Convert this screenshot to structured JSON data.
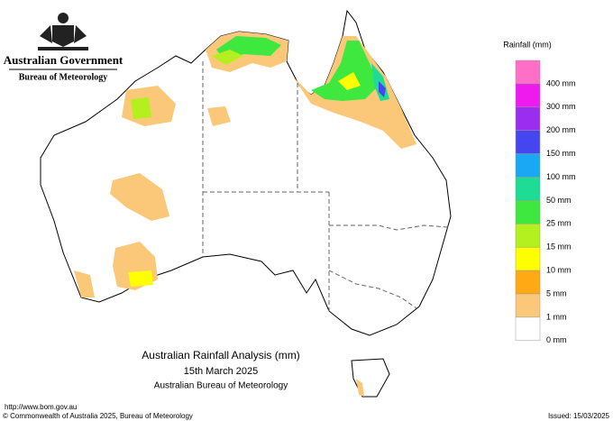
{
  "header": {
    "government": "Australian Government",
    "bureau": "Bureau of Meteorology"
  },
  "legend": {
    "title": "Rainfall (mm)",
    "items": [
      {
        "label": "400 mm",
        "color": "#ff6ec7"
      },
      {
        "label": "300 mm",
        "color": "#ee1aee"
      },
      {
        "label": "200 mm",
        "color": "#9a2ef0"
      },
      {
        "label": "150 mm",
        "color": "#4646f0"
      },
      {
        "label": "100 mm",
        "color": "#1aa8f5"
      },
      {
        "label": "50 mm",
        "color": "#1edc96"
      },
      {
        "label": "25 mm",
        "color": "#3ee83e"
      },
      {
        "label": "15 mm",
        "color": "#b4f01e"
      },
      {
        "label": "10 mm",
        "color": "#ffff00"
      },
      {
        "label": "5 mm",
        "color": "#ffaa14"
      },
      {
        "label": "1 mm",
        "color": "#fac878"
      },
      {
        "label": "0 mm",
        "color": "#ffffff"
      }
    ]
  },
  "title": {
    "line1": "Australian Rainfall Analysis (mm)",
    "line2": "15th March 2025",
    "line3": "Australian Bureau of Meteorology"
  },
  "footer": {
    "url": "http://www.bom.gov.au",
    "copyright": "© Commonwealth of Australia 2025, Bureau of Meteorology",
    "issued": "Issued: 15/03/2025"
  }
}
